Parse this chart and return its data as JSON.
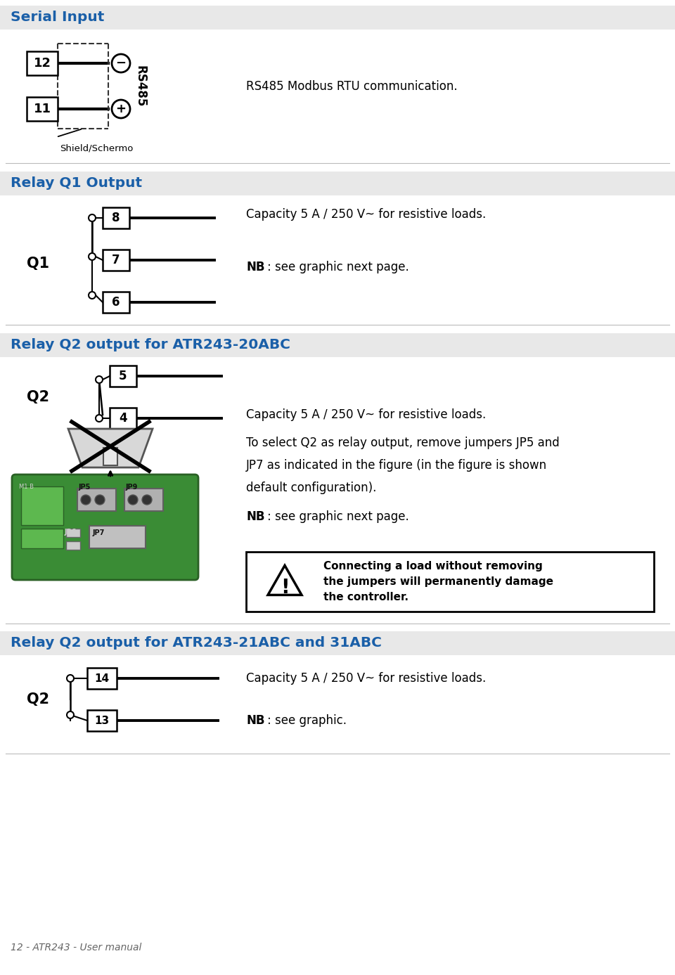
{
  "page_bg": "#ffffff",
  "section_bg": "#e8e8e8",
  "section_title_color": "#1a5fa8",
  "body_text_color": "#222222",
  "line_color": "#000000",
  "footer_text": "12 - ATR243 - User manual",
  "sec1_title": "Serial Input",
  "sec2_title": "Relay Q1 Output",
  "sec3_title": "Relay Q2 output for ATR243-20ABC",
  "sec4_title": "Relay Q2 output for ATR243-21ABC and 31ABC",
  "rs485_text": "RS485 Modbus RTU communication.",
  "q1_cap_text": "Capacity 5 A / 250 V~ for resistive loads.",
  "q1_nb_text": ": see graphic next page.",
  "q2_cap_text": "Capacity 5 A / 250 V~ for resistive loads.",
  "q2_body_text": "To select Q2 as relay output, remove jumpers JP5 and\nJP7 as indicated in the figure (in the figure is shown\ndefault configuration).",
  "q2_nb_text": ": see graphic next page.",
  "warn_text": "Connecting a load without removing\nthe jumpers will permanently damage\nthe controller.",
  "q3_cap_text": "Capacity 5 A / 250 V~ for resistive loads.",
  "q3_nb_text": ": see graphic."
}
